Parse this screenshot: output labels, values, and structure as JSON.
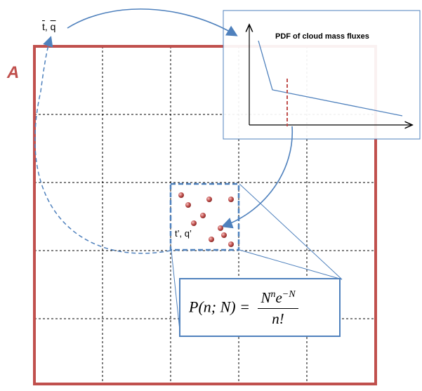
{
  "domain_label": "A",
  "mean_vars": {
    "t": "t",
    "sep": ", ",
    "q": "q"
  },
  "perturbation_label": "t’, q’",
  "pdf_panel": {
    "title": "PDF of cloud mass fluxes"
  },
  "formula": {
    "lhs": "P(n; N) =",
    "num_base": "N",
    "num_exp1": "n",
    "num_mid": "e",
    "num_exp2": "−N",
    "den": "n!"
  },
  "colors": {
    "domain_border": "#c0504d",
    "accent_blue": "#4f81bd",
    "cloud_dot": "#c0504d",
    "threshold": "#c0504d"
  }
}
